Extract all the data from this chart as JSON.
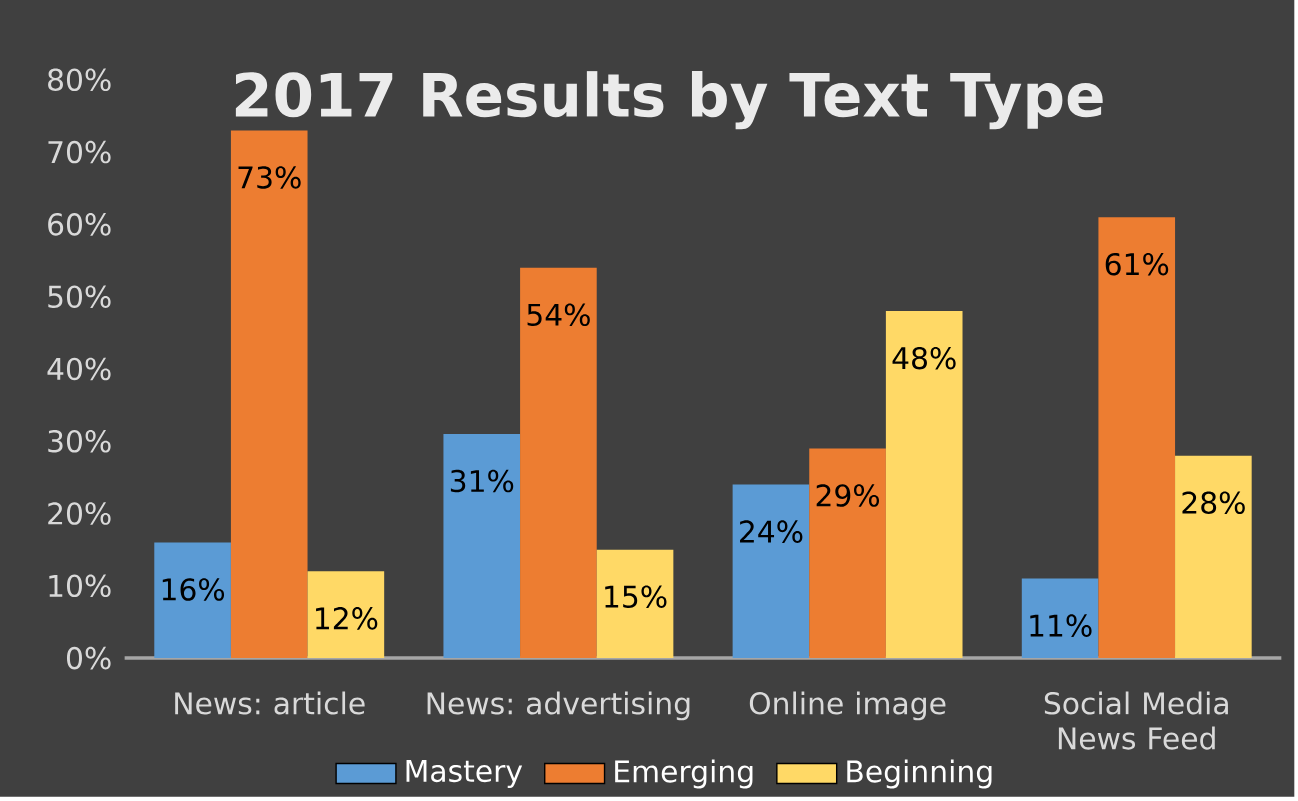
{
  "chart_data": {
    "type": "bar",
    "title": "2017 Results by Text Type",
    "categories": [
      "News: article",
      "News: advertising",
      "Online image",
      "Social Media News Feed"
    ],
    "series": [
      {
        "name": "Mastery",
        "color": "#5b9bd5",
        "values": [
          16,
          31,
          24,
          11
        ],
        "value_labels": [
          "16%",
          "31%",
          "24%",
          "11%"
        ]
      },
      {
        "name": "Emerging",
        "color": "#ed7d31",
        "values": [
          73,
          54,
          29,
          61
        ],
        "value_labels": [
          "73%",
          "54%",
          "29%",
          "61%"
        ]
      },
      {
        "name": "Beginning",
        "color": "#ffd966",
        "values": [
          12,
          15,
          48,
          28
        ],
        "value_labels": [
          "12%",
          "15%",
          "48%",
          "28%"
        ]
      }
    ],
    "ylim": [
      0,
      80
    ],
    "yticks": [
      {
        "value": 0,
        "label": "0%"
      },
      {
        "value": 10,
        "label": "10%"
      },
      {
        "value": 20,
        "label": "20%"
      },
      {
        "value": 30,
        "label": "30%"
      },
      {
        "value": 40,
        "label": "40%"
      },
      {
        "value": 50,
        "label": "50%"
      },
      {
        "value": 60,
        "label": "60%"
      },
      {
        "value": 70,
        "label": "70%"
      },
      {
        "value": 80,
        "label": "80%"
      }
    ],
    "legend": "bottom"
  }
}
